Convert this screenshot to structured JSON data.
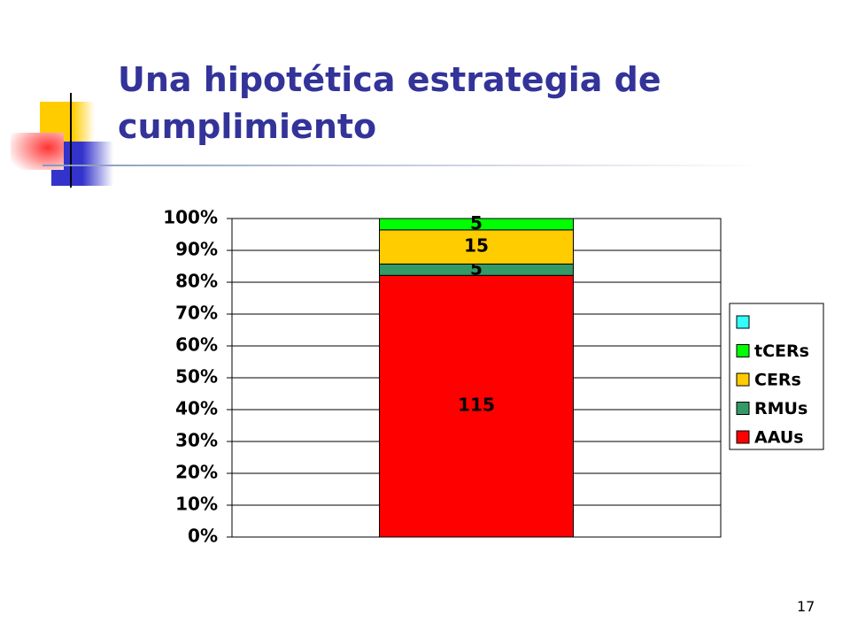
{
  "slide_title": "Una hipotética estrategia de cumplimiento",
  "slide_number": "17",
  "chart_data": {
    "type": "stacked_bar",
    "stack": "percent",
    "categories": [
      null
    ],
    "series": [
      {
        "name": "AAUs",
        "color": "#ff0000",
        "values": [
          115
        ]
      },
      {
        "name": "RMUs",
        "color": "#339966",
        "values": [
          5
        ]
      },
      {
        "name": "CERs",
        "color": "#ffcc00",
        "values": [
          15
        ]
      },
      {
        "name": "tCERs",
        "color": "#00ff00",
        "values": [
          5
        ]
      },
      {
        "name": null,
        "color": "#33ffff",
        "values": [
          0
        ]
      }
    ],
    "ylim": [
      0,
      100
    ],
    "yticks": [
      {
        "value": 0,
        "label": "0%"
      },
      {
        "value": 10,
        "label": "10%"
      },
      {
        "value": 20,
        "label": "20%"
      },
      {
        "value": 30,
        "label": "30%"
      },
      {
        "value": 40,
        "label": "40%"
      },
      {
        "value": 50,
        "label": "50%"
      },
      {
        "value": 60,
        "label": "60%"
      },
      {
        "value": 70,
        "label": "70%"
      },
      {
        "value": 80,
        "label": "80%"
      },
      {
        "value": 90,
        "label": "90%"
      },
      {
        "value": 100,
        "label": "100%"
      }
    ],
    "grid": true,
    "legend": "right"
  }
}
